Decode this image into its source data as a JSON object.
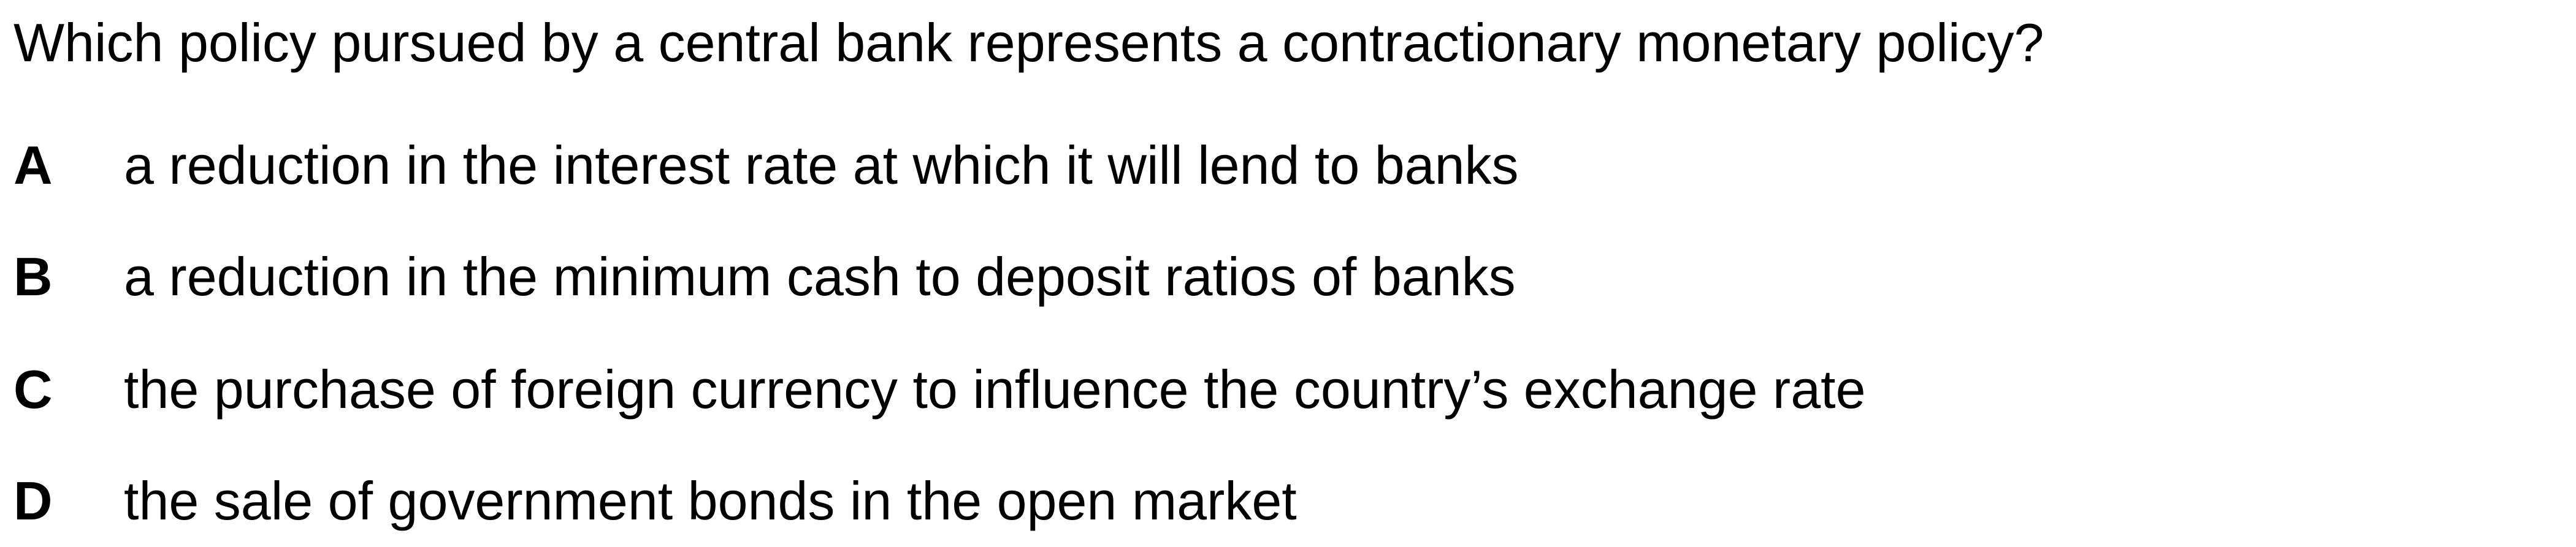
{
  "question": {
    "text": "Which policy pursued by a central bank represents a contractionary monetary policy?"
  },
  "options": [
    {
      "letter": "A",
      "text": "a reduction in the interest rate at which it will lend to banks"
    },
    {
      "letter": "B",
      "text": "a reduction in the minimum cash to deposit ratios of banks"
    },
    {
      "letter": "C",
      "text": "the purchase of foreign currency to influence the country’s exchange rate"
    },
    {
      "letter": "D",
      "text": "the sale of government bonds in the open market"
    }
  ]
}
